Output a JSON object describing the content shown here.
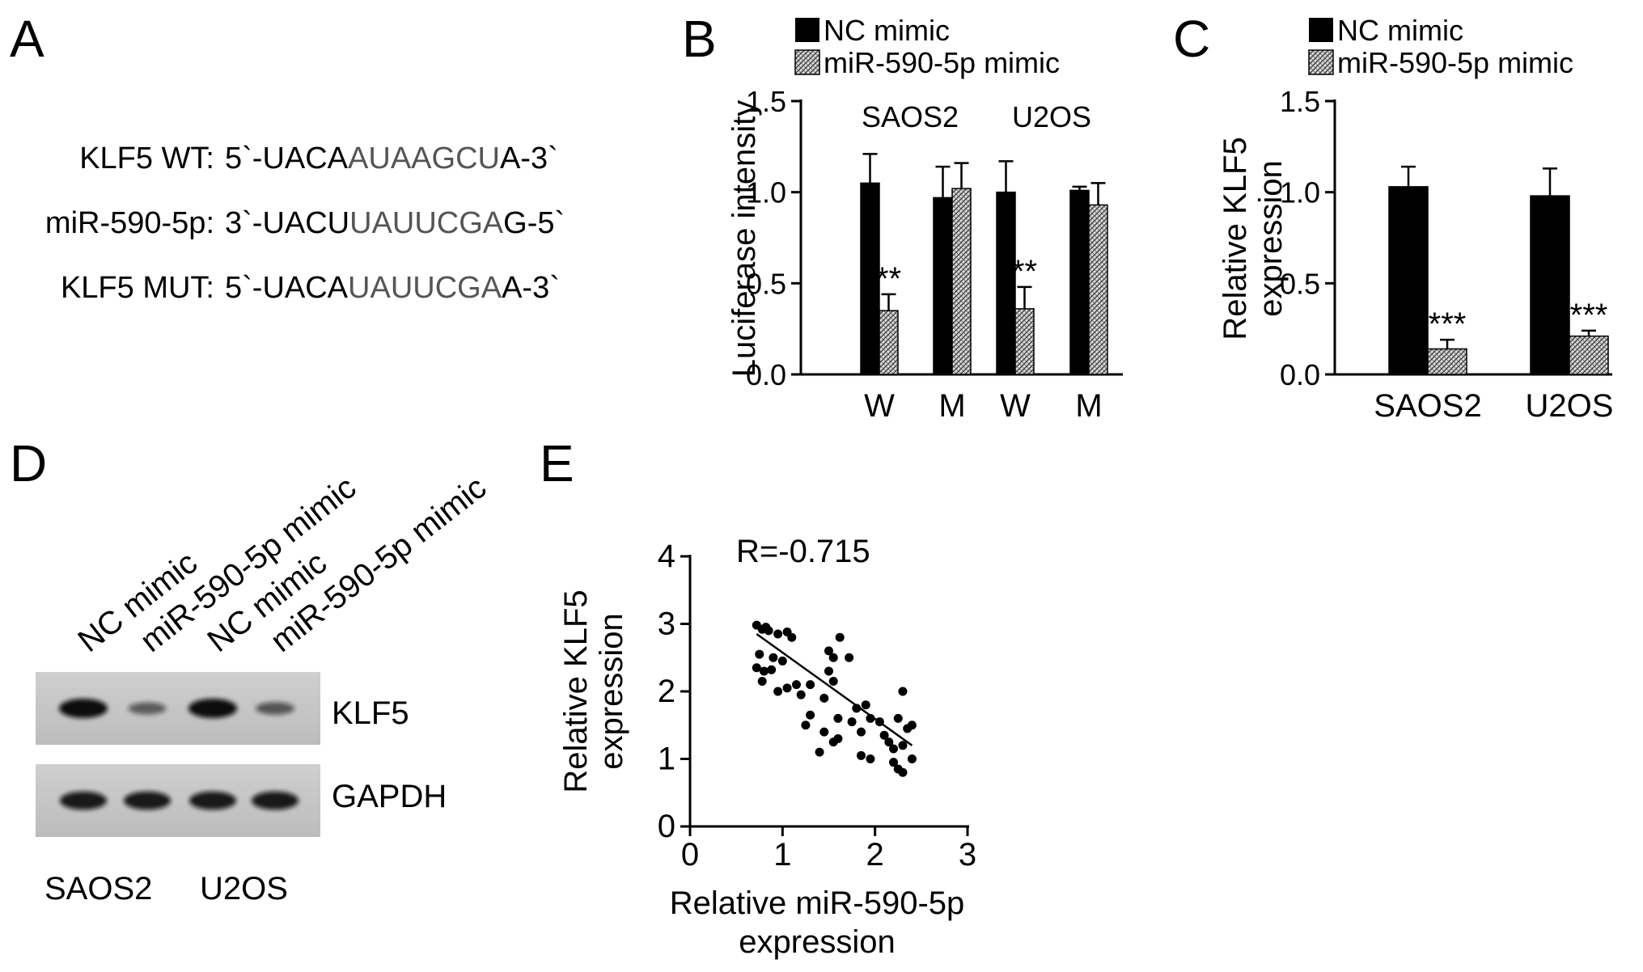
{
  "panels": {
    "A": "A",
    "B": "B",
    "C": "C",
    "D": "D",
    "E": "E"
  },
  "panel_a": {
    "rows": [
      {
        "label": "KLF5 WT:",
        "seq_start": "5`-UACA",
        "seq_mid": "AUAAGCU",
        "seq_end": "A-3`"
      },
      {
        "label": "miR-590-5p:",
        "seq_start": "3`-UACU",
        "seq_mid": "UAUUCGA",
        "seq_end": "G-5`"
      },
      {
        "label": "KLF5 MUT:",
        "seq_start": "5`-UACA",
        "seq_mid": "UAUUCGA",
        "seq_end": "A-3`"
      }
    ],
    "mid_color": "#555555"
  },
  "legend": [
    {
      "name": "NC mimic",
      "pattern": "solid"
    },
    {
      "name": "miR-590-5p mimic",
      "pattern": "hatched"
    }
  ],
  "chart_data": [
    {
      "panel": "B",
      "type": "bar",
      "ylabel": "Luciferase intensity",
      "ylim": [
        0,
        1.5
      ],
      "yticks": [
        "0.0",
        "0.5",
        "1.0",
        "1.5"
      ],
      "categories": [
        "W",
        "M",
        "W",
        "M"
      ],
      "group_labels": [
        "SAOS2",
        "U2OS"
      ],
      "series": [
        {
          "name": "NC mimic",
          "values": [
            1.05,
            0.97,
            1.0,
            1.01
          ],
          "errors": [
            0.16,
            0.17,
            0.17,
            0.02
          ]
        },
        {
          "name": "miR-590-5p mimic",
          "values": [
            0.35,
            1.02,
            0.36,
            0.93
          ],
          "errors": [
            0.09,
            0.14,
            0.12,
            0.12
          ]
        }
      ],
      "annotations": [
        {
          "category": 0,
          "series": 1,
          "text": "**"
        },
        {
          "category": 2,
          "series": 1,
          "text": "**"
        }
      ]
    },
    {
      "panel": "C",
      "type": "bar",
      "ylabel": "Relative KLF5 expression",
      "ylabel_lines": [
        "Relative KLF5",
        "expression"
      ],
      "ylim": [
        0,
        1.5
      ],
      "yticks": [
        "0.0",
        "0.5",
        "1.0",
        "1.5"
      ],
      "categories": [
        "SAOS2",
        "U2OS"
      ],
      "series": [
        {
          "name": "NC mimic",
          "values": [
            1.03,
            0.98
          ],
          "errors": [
            0.11,
            0.15
          ]
        },
        {
          "name": "miR-590-5p mimic",
          "values": [
            0.14,
            0.21
          ],
          "errors": [
            0.05,
            0.03
          ]
        }
      ],
      "annotations": [
        {
          "category": 0,
          "series": 1,
          "text": "***"
        },
        {
          "category": 1,
          "series": 1,
          "text": "***"
        }
      ]
    },
    {
      "panel": "E",
      "type": "scatter",
      "annotation": "R=-0.715",
      "xlabel_lines": [
        "Relative miR-590-5p",
        "expression"
      ],
      "ylabel_lines": [
        "Relative KLF5",
        "expression"
      ],
      "xlim": [
        0,
        3
      ],
      "ylim": [
        0,
        4
      ],
      "xticks": [
        "0",
        "1",
        "2",
        "3"
      ],
      "yticks": [
        "0",
        "1",
        "2",
        "3",
        "4"
      ],
      "points": [
        [
          0.72,
          2.98
        ],
        [
          0.78,
          2.92
        ],
        [
          0.82,
          2.95
        ],
        [
          0.85,
          2.9
        ],
        [
          0.95,
          2.85
        ],
        [
          1.05,
          2.88
        ],
        [
          1.1,
          2.8
        ],
        [
          0.75,
          2.55
        ],
        [
          0.9,
          2.5
        ],
        [
          1.0,
          2.45
        ],
        [
          0.72,
          2.35
        ],
        [
          0.8,
          2.3
        ],
        [
          0.88,
          2.32
        ],
        [
          0.78,
          2.15
        ],
        [
          0.95,
          2.0
        ],
        [
          1.05,
          2.05
        ],
        [
          1.15,
          2.1
        ],
        [
          1.2,
          1.95
        ],
        [
          1.3,
          2.1
        ],
        [
          1.3,
          1.65
        ],
        [
          1.25,
          1.5
        ],
        [
          1.5,
          2.6
        ],
        [
          1.55,
          2.5
        ],
        [
          1.5,
          2.3
        ],
        [
          1.62,
          2.8
        ],
        [
          1.72,
          2.5
        ],
        [
          1.55,
          2.15
        ],
        [
          1.45,
          1.9
        ],
        [
          1.6,
          1.6
        ],
        [
          1.45,
          1.4
        ],
        [
          1.6,
          1.3
        ],
        [
          1.55,
          1.25
        ],
        [
          1.4,
          1.1
        ],
        [
          1.75,
          1.55
        ],
        [
          1.8,
          1.75
        ],
        [
          1.85,
          1.4
        ],
        [
          1.9,
          1.8
        ],
        [
          1.95,
          1.6
        ],
        [
          2.05,
          1.55
        ],
        [
          2.1,
          1.35
        ],
        [
          1.85,
          1.05
        ],
        [
          1.95,
          1.0
        ],
        [
          2.15,
          1.25
        ],
        [
          2.2,
          1.15
        ],
        [
          2.25,
          1.6
        ],
        [
          2.3,
          2.0
        ],
        [
          2.35,
          1.45
        ],
        [
          2.3,
          1.2
        ],
        [
          2.2,
          0.95
        ],
        [
          2.25,
          0.85
        ],
        [
          2.3,
          0.8
        ],
        [
          2.4,
          1.0
        ],
        [
          2.4,
          1.5
        ]
      ],
      "fit": {
        "x": [
          0.72,
          2.4
        ],
        "y": [
          2.85,
          1.2
        ]
      }
    }
  ],
  "panel_d": {
    "lanes": [
      "NC mimic",
      "miR-590-5p mimic",
      "NC mimic",
      "miR-590-5p mimic"
    ],
    "bands": [
      {
        "label": "KLF5",
        "intensity": [
          1.0,
          0.35,
          1.0,
          0.4
        ]
      },
      {
        "label": "GAPDH",
        "intensity": [
          0.9,
          0.9,
          0.9,
          0.9
        ]
      }
    ],
    "cell_lines": [
      "SAOS2",
      "U2OS"
    ]
  }
}
